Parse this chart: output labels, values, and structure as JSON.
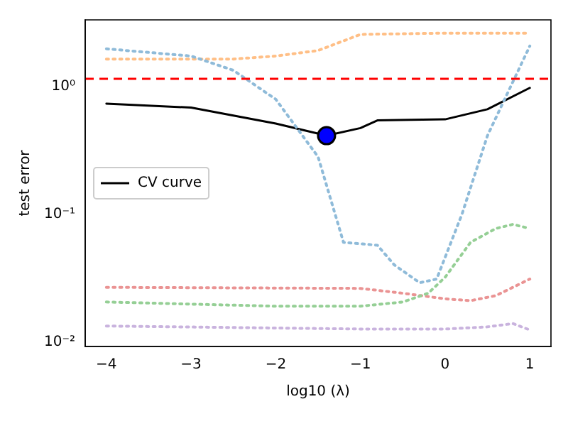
{
  "chart_data": {
    "type": "line",
    "xlabel": "log10 (λ)",
    "ylabel": "test error",
    "log": "y",
    "grid": false,
    "legend": "center left",
    "xlim": [
      -4.25,
      1.25
    ],
    "xticks": [
      {
        "value": -4,
        "label": "−4"
      },
      {
        "value": -3,
        "label": "−3"
      },
      {
        "value": -2,
        "label": "−2"
      },
      {
        "value": -1,
        "label": "−1"
      },
      0,
      1
    ],
    "ylim": [
      0.0092,
      3.3
    ],
    "yticks": [
      {
        "value": 0.01,
        "label": "10⁻²"
      },
      {
        "value": 0.1,
        "label": "10⁻¹"
      },
      {
        "value": 1,
        "label": "10⁰"
      }
    ],
    "ref_lines": [
      {
        "axis": "y",
        "value": 1.14,
        "color": "#ff0000",
        "line_style": "dashed"
      }
    ],
    "series": [
      {
        "color": "#8fbbd9",
        "line_style": "dotted",
        "x": [
          -4,
          -3,
          -2.5,
          -2,
          -1.5,
          -1.2,
          -0.8,
          -0.6,
          -0.3,
          -0.1,
          0.2,
          0.5,
          1
        ],
        "values": [
          1.96,
          1.72,
          1.33,
          0.79,
          0.28,
          0.06,
          0.057,
          0.04,
          0.029,
          0.031,
          0.1,
          0.41,
          2.06
        ]
      },
      {
        "color": "#ffbf86",
        "line_style": "dotted",
        "x": [
          -4,
          -2.5,
          -2,
          -1.5,
          -1,
          0,
          1
        ],
        "values": [
          1.63,
          1.63,
          1.72,
          1.9,
          2.54,
          2.6,
          2.6
        ]
      },
      {
        "color": "#95cf95",
        "line_style": "dotted",
        "x": [
          -4,
          -2,
          -1,
          -0.5,
          -0.2,
          0,
          0.3,
          0.6,
          0.8,
          1
        ],
        "values": [
          0.0205,
          0.019,
          0.019,
          0.0205,
          0.024,
          0.032,
          0.06,
          0.077,
          0.083,
          0.077
        ]
      },
      {
        "color": "#ea9393",
        "line_style": "dotted",
        "x": [
          -4,
          -1,
          -0.5,
          0,
          0.3,
          0.6,
          1
        ],
        "values": [
          0.0267,
          0.0262,
          0.024,
          0.0217,
          0.021,
          0.023,
          0.031
        ]
      },
      {
        "color": "#c9b3de",
        "line_style": "dotted",
        "x": [
          -4,
          -1,
          0,
          0.5,
          0.8,
          1
        ],
        "values": [
          0.0133,
          0.0126,
          0.0126,
          0.0131,
          0.0139,
          0.0124
        ]
      },
      {
        "name": "CV curve",
        "color": "#000000",
        "line_style": "solid",
        "x": [
          -4,
          -3,
          -2,
          -1.4,
          -1,
          -0.8,
          0,
          0.5,
          1
        ],
        "values": [
          0.73,
          0.68,
          0.51,
          0.41,
          0.47,
          0.54,
          0.55,
          0.66,
          0.97
        ]
      },
      {
        "type": "scatter",
        "marker": "circle",
        "color": "#0000ff",
        "x": [
          -1.4
        ],
        "values": [
          0.41
        ]
      }
    ]
  }
}
